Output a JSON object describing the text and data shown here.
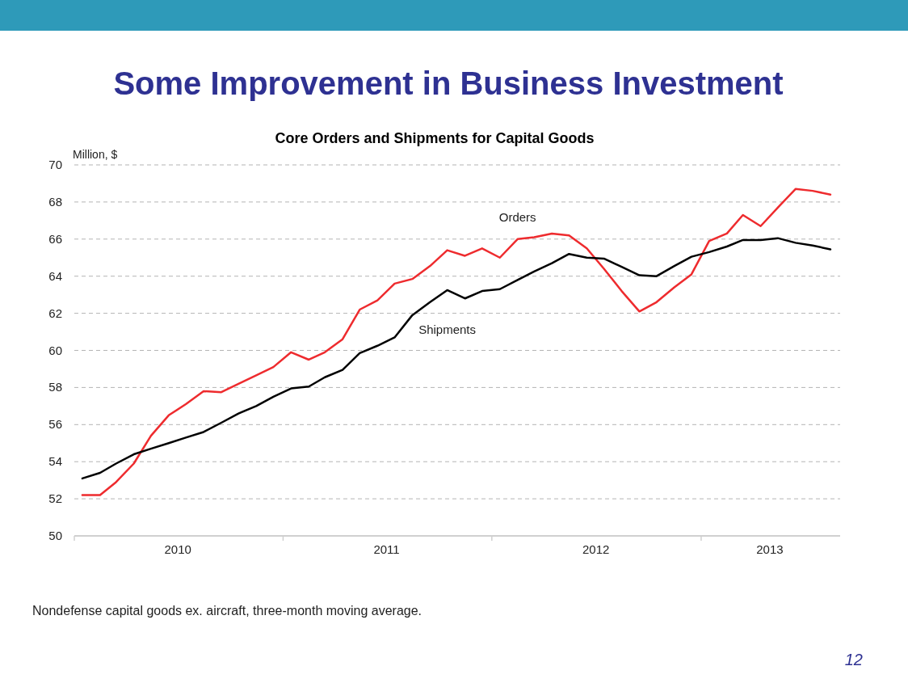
{
  "chart_data": {
    "type": "line",
    "title": "Some Improvement in Business Investment",
    "subtitle": "Core Orders and Shipments for Capital Goods",
    "ylabel": "Million, $",
    "x": [
      "2010-01-15",
      "2010-02-15",
      "2010-03-15",
      "2010-04-15",
      "2010-05-15",
      "2010-06-15",
      "2010-07-15",
      "2010-08-15",
      "2010-09-15",
      "2010-10-15",
      "2010-11-15",
      "2010-12-15",
      "2011-01-15",
      "2011-02-15",
      "2011-03-15",
      "2011-04-15",
      "2011-05-15",
      "2011-06-15",
      "2011-07-15",
      "2011-08-15",
      "2011-09-15",
      "2011-10-15",
      "2011-11-15",
      "2011-12-15",
      "2012-01-15",
      "2012-02-15",
      "2012-03-15",
      "2012-04-15",
      "2012-05-15",
      "2012-06-15",
      "2012-07-15",
      "2012-08-15",
      "2012-09-15",
      "2012-10-15",
      "2012-11-15",
      "2012-12-15",
      "2013-01-15",
      "2013-02-15",
      "2013-03-15",
      "2013-04-15",
      "2013-05-15",
      "2013-06-15",
      "2013-07-15",
      "2013-08-15"
    ],
    "series": [
      {
        "name": "Orders",
        "color": "#ee2b2e",
        "values": [
          52.2,
          52.2,
          52.9,
          53.9,
          55.4,
          56.5,
          57.1,
          57.8,
          57.75,
          58.2,
          58.65,
          59.1,
          59.9,
          59.5,
          59.9,
          60.6,
          62.2,
          62.7,
          63.6,
          63.85,
          64.55,
          65.4,
          65.1,
          65.5,
          65.0,
          66.0,
          66.1,
          66.3,
          66.2,
          65.5,
          64.4,
          63.2,
          62.1,
          62.6,
          63.4,
          64.1,
          65.9,
          66.3,
          67.3,
          66.7,
          67.7,
          68.7,
          68.6,
          68.4
        ]
      },
      {
        "name": "Shipments",
        "color": "#000000",
        "values": [
          53.1,
          53.4,
          53.9,
          54.4,
          54.7,
          55.0,
          55.3,
          55.6,
          56.1,
          56.6,
          57.0,
          57.5,
          57.95,
          58.05,
          58.55,
          58.95,
          59.85,
          60.25,
          60.7,
          61.9,
          62.6,
          63.25,
          62.8,
          63.2,
          63.3,
          63.8,
          64.25,
          64.7,
          65.2,
          65.0,
          64.95,
          64.5,
          64.05,
          64.0,
          64.55,
          65.05,
          65.3,
          65.6,
          65.95,
          65.95,
          66.05,
          65.8,
          65.65,
          65.45
        ]
      }
    ],
    "xlim": [
      "2010-01-01",
      "2013-09-01"
    ],
    "xticks": [
      {
        "value": "2010-01-01",
        "label": null
      },
      {
        "value": "2010-07-01",
        "label": "2010"
      },
      {
        "value": "2011-01-01",
        "label": null
      },
      {
        "value": "2011-07-01",
        "label": "2011"
      },
      {
        "value": "2012-01-01",
        "label": null
      },
      {
        "value": "2012-07-01",
        "label": "2012"
      },
      {
        "value": "2013-01-01",
        "label": null
      },
      {
        "value": "2013-05-01",
        "label": "2013"
      }
    ],
    "ylim": [
      50,
      70
    ],
    "yticks": [
      50,
      52,
      54,
      56,
      58,
      60,
      62,
      64,
      66,
      68,
      70
    ],
    "grid": "y",
    "line_style": "solid",
    "marker": "none",
    "annotations": [
      "Nondefense capital goods ex. aircraft, three-month moving average.",
      "12"
    ]
  }
}
